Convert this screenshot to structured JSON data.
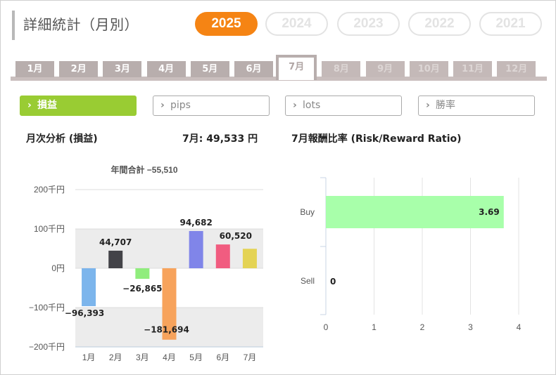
{
  "title": "詳細統計（月別）",
  "years": [
    {
      "label": "2025",
      "active": true
    },
    {
      "label": "2024",
      "active": false
    },
    {
      "label": "2023",
      "active": false
    },
    {
      "label": "2022",
      "active": false
    },
    {
      "label": "2021",
      "active": false
    }
  ],
  "months": [
    {
      "label": "1月",
      "state": "normal"
    },
    {
      "label": "2月",
      "state": "normal"
    },
    {
      "label": "3月",
      "state": "normal"
    },
    {
      "label": "4月",
      "state": "normal"
    },
    {
      "label": "5月",
      "state": "normal"
    },
    {
      "label": "6月",
      "state": "normal"
    },
    {
      "label": "7月",
      "state": "active"
    },
    {
      "label": "8月",
      "state": "disabled"
    },
    {
      "label": "9月",
      "state": "disabled"
    },
    {
      "label": "10月",
      "state": "disabled"
    },
    {
      "label": "11月",
      "state": "disabled"
    },
    {
      "label": "12月",
      "state": "disabled"
    }
  ],
  "metrics": [
    {
      "label": "損益",
      "active": true
    },
    {
      "label": "pips",
      "active": false
    },
    {
      "label": "lots",
      "active": false
    },
    {
      "label": "勝率",
      "active": false
    }
  ],
  "monthly_heading": "月次分析 (損益)",
  "month_value_label": "7月:  49,533 円",
  "rr_heading": "7月報酬比率 (Risk/Reward Ratio)",
  "colors": {
    "accent": "#f58414",
    "metric_active": "#99cc33"
  },
  "chart_data": [
    {
      "type": "bar",
      "title": "年間合計 −55,510",
      "categories": [
        "1月",
        "2月",
        "3月",
        "4月",
        "5月",
        "6月",
        "7月"
      ],
      "values": [
        -96393,
        44707,
        -26865,
        -181694,
        94682,
        60520,
        49533
      ],
      "data_labels": [
        "−96,393",
        "44,707",
        "−26,865",
        "−181,694",
        "94,682",
        "60,520",
        ""
      ],
      "colors": [
        "#7cb5ec",
        "#434348",
        "#90ed7d",
        "#f7a35c",
        "#8085e9",
        "#f15c80",
        "#e4d354"
      ],
      "yticks": [
        "200千円",
        "100千円",
        "0円",
        "−100千円",
        "−200千円"
      ],
      "ylim": [
        -200000,
        200000
      ],
      "grid": true
    },
    {
      "type": "bar",
      "orientation": "horizontal",
      "categories": [
        "Buy",
        "Sell"
      ],
      "values": [
        3.69,
        0
      ],
      "data_labels": [
        "3.69",
        "0"
      ],
      "xticks": [
        "0",
        "1",
        "2",
        "3",
        "4"
      ],
      "xlim": [
        0,
        4
      ],
      "bar_color": "#a8ffaa",
      "grid": true
    }
  ]
}
